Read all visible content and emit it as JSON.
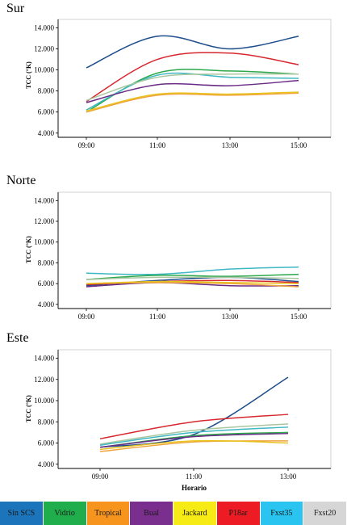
{
  "chart_data": [
    {
      "type": "line",
      "title": "Sur",
      "ylabel": "TCC (°K)",
      "xlabel": "",
      "ylim": [
        3.6,
        14.8
      ],
      "yticks": [
        "4.000",
        "6.000",
        "8.000",
        "10.000",
        "12.000",
        "14.000"
      ],
      "categories": [
        "09:00",
        "11:00",
        "13:00",
        "15:00"
      ],
      "series": [
        {
          "color": "#1f4e8c",
          "values": [
            10.2,
            13.2,
            12.0,
            13.2
          ]
        },
        {
          "color": "#d7282f",
          "values": [
            7.0,
            11.0,
            11.6,
            10.5
          ]
        },
        {
          "color": "#2aa84a",
          "values": [
            6.0,
            9.7,
            9.9,
            9.6
          ]
        },
        {
          "color": "#3fb8c4",
          "values": [
            6.2,
            9.5,
            9.3,
            9.2
          ]
        },
        {
          "color": "#aac7a0",
          "values": [
            7.1,
            9.3,
            9.6,
            9.6
          ]
        },
        {
          "color": "#6a2b86",
          "values": [
            6.9,
            8.6,
            8.5,
            9.0
          ]
        },
        {
          "color": "#f0a23a",
          "values": [
            6.0,
            7.6,
            7.6,
            7.8
          ]
        },
        {
          "color": "#e8c320",
          "values": [
            6.1,
            7.7,
            7.7,
            7.9
          ]
        }
      ]
    },
    {
      "type": "line",
      "title": "Norte",
      "ylabel": "TCC (°K)",
      "xlabel": "",
      "ylim": [
        3.6,
        14.8
      ],
      "yticks": [
        "4.000",
        "6.000",
        "8.000",
        "10.000",
        "12.000",
        "14.000"
      ],
      "categories": [
        "09:00",
        "11:00",
        "13:00",
        "15:00"
      ],
      "series": [
        {
          "color": "#3fb8c4",
          "values": [
            7.0,
            6.9,
            7.4,
            7.6
          ]
        },
        {
          "color": "#2aa84a",
          "values": [
            6.4,
            6.8,
            6.7,
            6.9
          ]
        },
        {
          "color": "#1f4e8c",
          "values": [
            5.8,
            6.3,
            6.6,
            6.2
          ]
        },
        {
          "color": "#aac7a0",
          "values": [
            6.4,
            6.6,
            6.6,
            6.5
          ]
        },
        {
          "color": "#d7282f",
          "values": [
            5.9,
            6.2,
            6.3,
            6.1
          ]
        },
        {
          "color": "#6a2b86",
          "values": [
            5.7,
            6.1,
            5.8,
            5.8
          ]
        },
        {
          "color": "#f0a23a",
          "values": [
            6.0,
            6.1,
            6.0,
            5.7
          ]
        },
        {
          "color": "#e8c320",
          "values": [
            6.0,
            6.2,
            6.1,
            6.0
          ]
        }
      ]
    },
    {
      "type": "line",
      "title": "Este",
      "ylabel": "TCC (°K)",
      "xlabel": "Horario",
      "ylim": [
        3.6,
        14.8
      ],
      "yticks": [
        "4.000",
        "6.000",
        "8.000",
        "10.000",
        "12.000",
        "14.000"
      ],
      "categories": [
        "09:00",
        "11:00",
        "13:00"
      ],
      "series": [
        {
          "color": "#1f4e8c",
          "values": [
            5.6,
            6.8,
            12.2
          ]
        },
        {
          "color": "#d7282f",
          "values": [
            6.4,
            8.0,
            8.7
          ]
        },
        {
          "color": "#aac7a0",
          "values": [
            5.9,
            7.2,
            7.8
          ]
        },
        {
          "color": "#3fb8c4",
          "values": [
            5.8,
            7.0,
            7.5
          ]
        },
        {
          "color": "#2aa84a",
          "values": [
            5.6,
            6.7,
            7.0
          ]
        },
        {
          "color": "#6a2b86",
          "values": [
            5.6,
            6.6,
            6.9
          ]
        },
        {
          "color": "#f0a23a",
          "values": [
            5.2,
            6.1,
            6.2
          ]
        },
        {
          "color": "#e8c320",
          "values": [
            5.4,
            6.2,
            6.0
          ]
        }
      ]
    }
  ],
  "legend": [
    {
      "label": "Sin SCS",
      "color": "#1c74bb"
    },
    {
      "label": "Vidrio",
      "color": "#1fae4b"
    },
    {
      "label": "Tropical",
      "color": "#f7941d"
    },
    {
      "label": "Bual",
      "color": "#7a2f8f"
    },
    {
      "label": "Jackard",
      "color": "#f6eb14"
    },
    {
      "label": "P18ar",
      "color": "#ed1c24"
    },
    {
      "label": "Fxst35",
      "color": "#29c5f0"
    },
    {
      "label": "Fxst20",
      "color": "#d6d6d6"
    }
  ]
}
